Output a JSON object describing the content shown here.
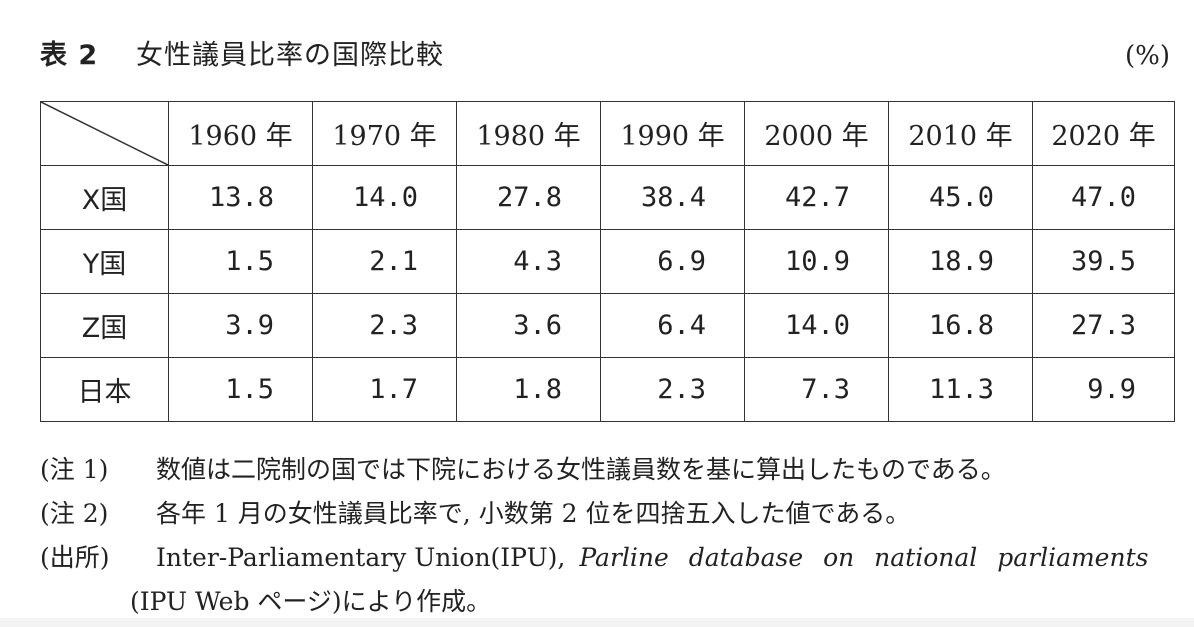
{
  "title": {
    "label": "表 2",
    "text": "女性議員比率の国際比較",
    "unit": "(%)"
  },
  "table": {
    "columns": [
      "1960 年",
      "1970 年",
      "1980 年",
      "1990 年",
      "2000 年",
      "2010 年",
      "2020 年"
    ],
    "rows": [
      {
        "name": "X国",
        "values": [
          "13.8",
          "14.0",
          "27.8",
          "38.4",
          "42.7",
          "45.0",
          "47.0"
        ]
      },
      {
        "name": "Y国",
        "values": [
          "1.5",
          "2.1",
          "4.3",
          "6.9",
          "10.9",
          "18.9",
          "39.5"
        ]
      },
      {
        "name": "Z国",
        "values": [
          "3.9",
          "2.3",
          "3.6",
          "6.4",
          "14.0",
          "16.8",
          "27.3"
        ]
      },
      {
        "name": "日本",
        "values": [
          "1.5",
          "1.7",
          "1.8",
          "2.3",
          "7.3",
          "11.3",
          "9.9"
        ]
      }
    ]
  },
  "notes": [
    {
      "key": "(注 1)",
      "text": "数値は二院制の国では下院における女性議員数を基に算出したものである。"
    },
    {
      "key": "(注 2)",
      "text": "各年 1 月の女性議員比率で, 小数第 2 位を四捨五入した値である。"
    }
  ],
  "source": {
    "key": "(出所)",
    "org": "Inter-Parliamentary Union(IPU),",
    "database": "Parline database on national parliaments",
    "continuation": "(IPU Web ページ)により作成。"
  }
}
